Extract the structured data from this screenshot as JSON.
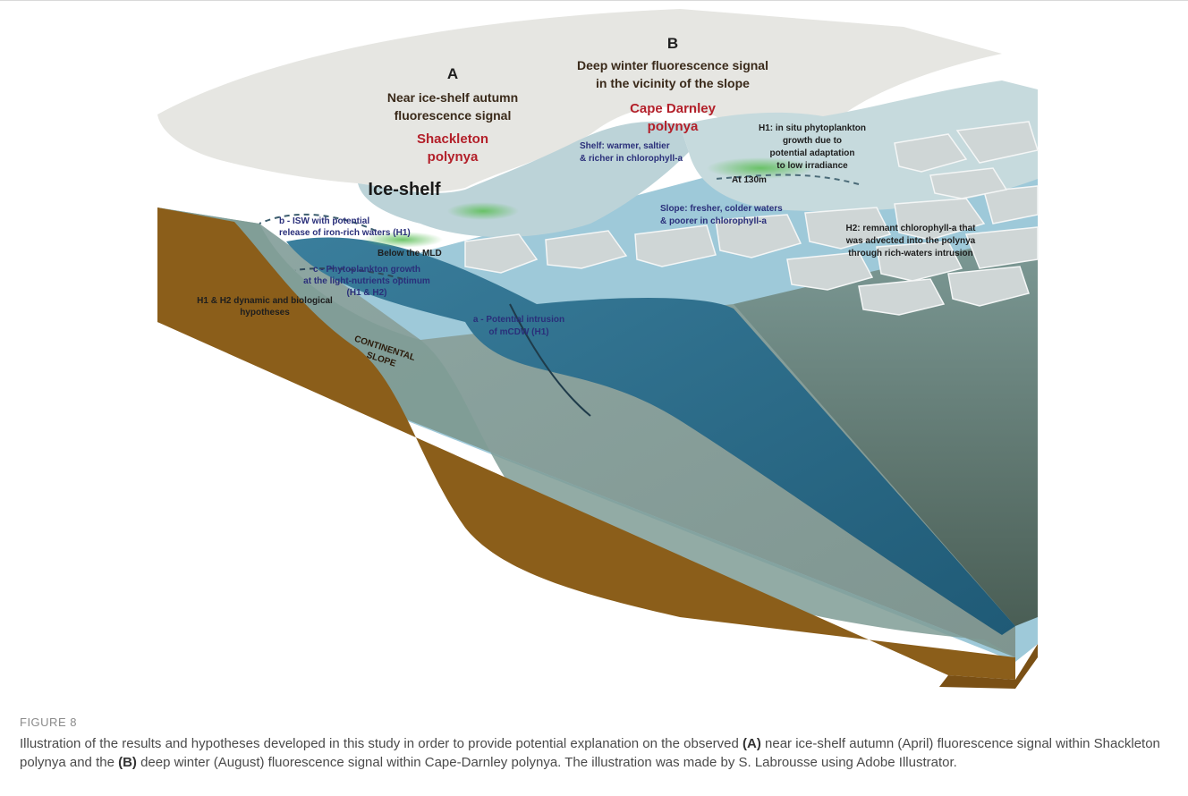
{
  "figure": {
    "number_label": "FIGURE 8",
    "labels": {
      "panel_a": {
        "letter": "A",
        "line1": "Near ice-shelf autumn",
        "line2": "fluorescence signal",
        "polynya1": "Shackleton",
        "polynya2": "polynya"
      },
      "panel_b": {
        "letter": "B",
        "line1": "Deep winter fluorescence signal",
        "line2": "in the vicinity of the slope",
        "polynya1": "Cape Darnley",
        "polynya2": "polynya"
      },
      "ice_shelf": "Ice-shelf",
      "shelf_note": [
        "Shelf: warmer, saltier",
        "& richer in chlorophyll-a"
      ],
      "slope_note": [
        "Slope: fresher, colder waters",
        "& poorer in chlorophyll-a"
      ],
      "at_130m": "At 130m",
      "h1_note": [
        "H1: in situ phytoplankton",
        "growth due to",
        "potential adaptation",
        "to low irradiance"
      ],
      "h2_note": [
        "H2: remnant chlorophyll-a that",
        "was advected into the polynya",
        "through rich-waters intrusion"
      ],
      "b_note": [
        "b - ISW with potential",
        "release of iron-rich waters (H1)"
      ],
      "below_mld": "Below the MLD",
      "c_note": [
        "c - Phytoplankton growth",
        "at the light-nutrients optimum",
        "(H1 & H2)"
      ],
      "hypotheses_note": [
        "H1 & H2 dynamic and biological",
        "hypotheses"
      ],
      "a_note": [
        "a - Potential intrusion",
        "of mCDW (H1)"
      ],
      "continental_slope": [
        "CONTINENTAL",
        "SLOPE"
      ]
    },
    "colors": {
      "sediment": "#8b5e1a",
      "deep_water": "#2b6f8c",
      "shelf_water": "#6f8f88",
      "ice": "#e6e6e2",
      "polynya_water": "#bcd3d8",
      "title_red": "#b3202a",
      "note_navy": "#2a2f7a",
      "note_black": "#1e1e1e"
    }
  },
  "caption": {
    "segments": [
      {
        "text": "Illustration of the results and hypotheses developed in this study in order to provide potential explanation on the observed ",
        "bold": false
      },
      {
        "text": "(A)",
        "bold": true
      },
      {
        "text": " near ice-shelf autumn (April) fluorescence signal within Shackleton polynya and the ",
        "bold": false
      },
      {
        "text": "(B)",
        "bold": true
      },
      {
        "text": " deep winter (August) fluorescence signal within Cape-Darnley polynya. The illustration was made by S. Labrousse using Adobe Illustrator.",
        "bold": false
      }
    ]
  }
}
